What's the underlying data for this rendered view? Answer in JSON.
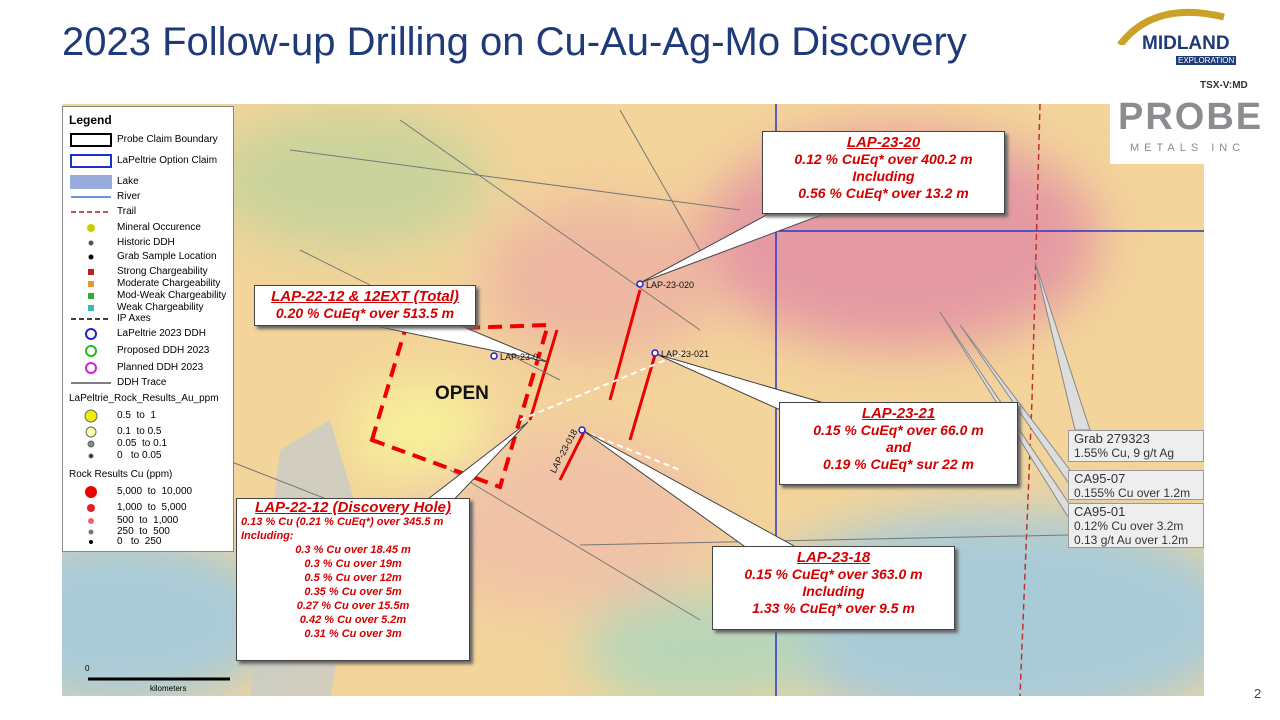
{
  "header": {
    "title": "2023 Follow-up Drilling on Cu-Au-Ag-Mo Discovery"
  },
  "logos": {
    "midland": "MIDLAND",
    "midland_sub": "EXPLORATION",
    "ticker": "TSX-V:MD",
    "probe": "PROBE",
    "probe_sub": "METALS INC"
  },
  "legend": {
    "title": "Legend",
    "items": [
      "Probe Claim Boundary",
      "LaPeltrie Option Claim",
      "Lake",
      "River",
      "Trail",
      "Mineral Occurence",
      "Historic DDH",
      "Grab Sample Location",
      "Strong Chargeability",
      "Moderate Chargeability",
      "Mod-Weak Chargeability",
      "Weak Chargeability",
      "IP Axes",
      "LaPeltrie 2023 DDH",
      "Proposed DDH 2023",
      "Planned DDH 2023",
      "DDH Trace"
    ],
    "au_title": "LaPeltrie_Rock_Results_Au_ppm",
    "au_items": [
      "0.5  to  1",
      "0.1  to 0.5",
      "0.05  to 0.1",
      "0   to 0.05"
    ],
    "cu_title": "Rock Results Cu (ppm)",
    "cu_items": [
      "5,000  to  10,000",
      "1,000  to  5,000",
      "500  to  1,000",
      "250  to  500",
      "0   to  250"
    ]
  },
  "map": {
    "open_label": "OPEN",
    "holes": [
      "LAP-23-020",
      "LAP-23-021",
      "LAP-23-018",
      "LAP-23-0"
    ],
    "scale_zero": "0",
    "scale_unit": "kilometers"
  },
  "callouts": [
    {
      "title": "LAP-23-20",
      "lines": [
        "0.12 % CuEq* over 400.2 m",
        "Including",
        "0.56 % CuEq* over 13.2 m"
      ]
    },
    {
      "title": "LAP-22-12 & 12EXT (Total)",
      "lines": [
        "0.20 % CuEq* over 513.5 m"
      ]
    },
    {
      "title": "LAP-23-21",
      "lines": [
        "0.15 % CuEq* over 66.0 m",
        "and",
        "0.19 % CuEq* sur 22 m"
      ]
    },
    {
      "title": "LAP-23-18",
      "lines": [
        "0.15 % CuEq* over 363.0 m",
        "Including",
        "1.33 % CuEq* over 9.5 m"
      ]
    },
    {
      "title": "LAP-22-12 (Discovery Hole)",
      "lines": [
        "0.13 % Cu (0.21 % CuEq*) over 345.5 m",
        "Including:",
        "0.3 % Cu over 18.45 m",
        "0.3 % Cu over 19m",
        "0.5 % Cu over 12m",
        "0.35 % Cu over 5m",
        "0.27 % Cu over 15.5m",
        "0.42 %  Cu over 5.2m",
        "0.31 % Cu over 3m"
      ]
    }
  ],
  "grab_boxes": [
    {
      "title": "Grab 279323",
      "lines": [
        "1.55% Cu, 9 g/t Ag"
      ]
    },
    {
      "title": "CA95-07",
      "lines": [
        "0.155% Cu over 1.2m"
      ]
    },
    {
      "title": "CA95-01",
      "lines": [
        "0.12% Cu over 3.2m",
        "0.13 g/t Au over 1.2m"
      ]
    }
  ],
  "footer": {
    "page": "2"
  }
}
